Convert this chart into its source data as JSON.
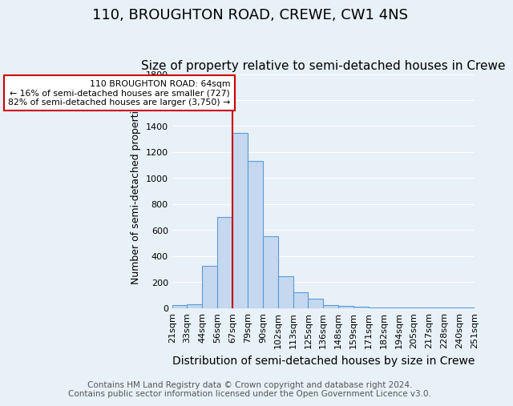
{
  "title": "110, BROUGHTON ROAD, CREWE, CW1 4NS",
  "subtitle": "Size of property relative to semi-detached houses in Crewe",
  "xlabel": "Distribution of semi-detached houses by size in Crewe",
  "ylabel": "Number of semi-detached properties",
  "footer_line1": "Contains HM Land Registry data © Crown copyright and database right 2024.",
  "footer_line2": "Contains public sector information licensed under the Open Government Licence v3.0.",
  "bin_labels": [
    "21sqm",
    "33sqm",
    "44sqm",
    "56sqm",
    "67sqm",
    "79sqm",
    "90sqm",
    "102sqm",
    "113sqm",
    "125sqm",
    "136sqm",
    "148sqm",
    "159sqm",
    "171sqm",
    "182sqm",
    "194sqm",
    "205sqm",
    "217sqm",
    "228sqm",
    "240sqm",
    "251sqm"
  ],
  "bar_heights": [
    20,
    30,
    325,
    700,
    1350,
    1130,
    550,
    245,
    120,
    70,
    25,
    15,
    10,
    5,
    5,
    3,
    2,
    2,
    2,
    2
  ],
  "bar_color": "#c5d8f0",
  "bar_edge_color": "#5b9bd5",
  "marker_bin_index": 4,
  "annotation_line1": "110 BROUGHTON ROAD: 64sqm",
  "annotation_line2": "← 16% of semi-detached houses are smaller (727)",
  "annotation_line3": "82% of semi-detached houses are larger (3,750) →",
  "annotation_box_color": "#ffffff",
  "annotation_box_edge_color": "#cc0000",
  "marker_line_color": "#cc0000",
  "ylim": [
    0,
    1800
  ],
  "yticks": [
    0,
    200,
    400,
    600,
    800,
    1000,
    1200,
    1400,
    1600,
    1800
  ],
  "background_color": "#e8f0f8",
  "grid_color": "#ffffff",
  "title_fontsize": 13,
  "subtitle_fontsize": 11,
  "xlabel_fontsize": 10,
  "ylabel_fontsize": 9,
  "tick_fontsize": 8,
  "footer_fontsize": 7.5
}
